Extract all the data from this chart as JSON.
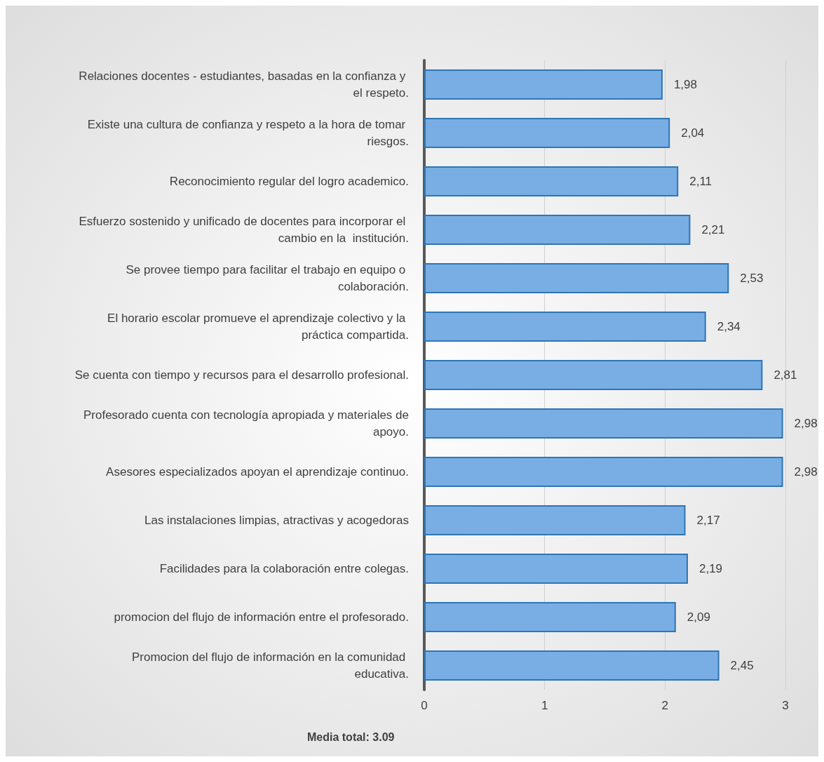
{
  "chart_data": {
    "type": "bar",
    "orientation": "horizontal",
    "categories": [
      "Relaciones docentes - estudiantes, basadas en la confianza y el respeto.",
      "Existe una cultura de confianza y respeto a la hora de tomar riesgos.",
      "Reconocimiento regular del logro academico.",
      "Esfuerzo sostenido y unificado de docentes para incorporar el cambio en la  institución.",
      "Se provee tiempo para facilitar el trabajo en equipo o colaboración.",
      "El horario escolar promueve el aprendizaje colectivo y la práctica compartida.",
      "Se cuenta con tiempo y recursos para el desarrollo profesional.",
      "Profesorado cuenta con tecnología apropiada y materiales de apoyo.",
      "Asesores especializados apoyan el aprendizaje continuo.",
      "Las instalaciones limpias, atractivas y acogedoras",
      "Facilidades para la colaboración entre colegas.",
      "promocion del flujo de información entre el profesorado.",
      "Promocion del flujo de información en la comunidad educativa."
    ],
    "values": [
      1.98,
      2.04,
      2.11,
      2.21,
      2.53,
      2.34,
      2.81,
      2.98,
      2.98,
      2.17,
      2.19,
      2.09,
      2.45
    ],
    "value_labels": [
      "1,98",
      "2,04",
      "2,11",
      "2,21",
      "2,53",
      "2,34",
      "2,81",
      "2,98",
      "2,98",
      "2,17",
      "2,19",
      "2,09",
      "2,45"
    ],
    "color": "#79aee4",
    "xlim": [
      0,
      3
    ],
    "xticks": [
      0,
      1,
      2,
      3
    ],
    "grid": "x",
    "annotations": [
      "Media total: 3.09"
    ]
  }
}
